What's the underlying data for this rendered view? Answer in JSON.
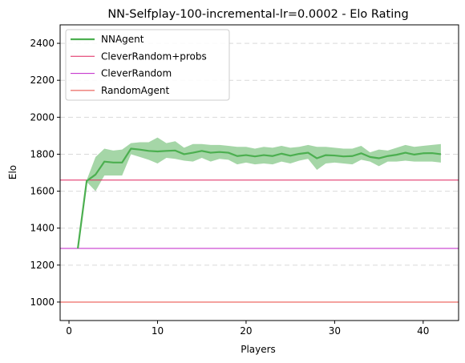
{
  "chart_data": {
    "type": "line",
    "title": "NN-Selfplay-100-incremental-lr=0.0002 - Elo Rating",
    "xlabel": "Players",
    "ylabel": "Elo",
    "xlim": [
      -1,
      44
    ],
    "ylim": [
      900,
      2500
    ],
    "xticks": [
      0,
      10,
      20,
      30,
      40
    ],
    "yticks": [
      1000,
      1200,
      1400,
      1600,
      1800,
      2000,
      2200,
      2400
    ],
    "grid": "horizontal-dashed",
    "legend_position": "upper-left",
    "series": [
      {
        "name": "NNAgent",
        "color": "#4caf50",
        "band_color": "#a5d6a7",
        "x": [
          1,
          2,
          3,
          4,
          5,
          6,
          7,
          8,
          9,
          10,
          11,
          12,
          13,
          14,
          15,
          16,
          17,
          18,
          19,
          20,
          21,
          22,
          23,
          24,
          25,
          26,
          27,
          28,
          29,
          30,
          31,
          32,
          33,
          34,
          35,
          36,
          37,
          38,
          39,
          40,
          41,
          42
        ],
        "values": [
          1290,
          1655,
          1690,
          1760,
          1755,
          1755,
          1830,
          1825,
          1818,
          1815,
          1818,
          1820,
          1800,
          1808,
          1818,
          1808,
          1812,
          1808,
          1790,
          1795,
          1788,
          1795,
          1790,
          1803,
          1792,
          1802,
          1808,
          1778,
          1795,
          1793,
          1788,
          1790,
          1805,
          1785,
          1778,
          1790,
          1797,
          1808,
          1798,
          1805,
          1806,
          1800
        ],
        "lower": [
          1290,
          1650,
          1600,
          1685,
          1685,
          1685,
          1800,
          1785,
          1770,
          1750,
          1780,
          1775,
          1765,
          1760,
          1780,
          1760,
          1775,
          1770,
          1745,
          1755,
          1745,
          1750,
          1745,
          1760,
          1750,
          1765,
          1775,
          1715,
          1750,
          1755,
          1750,
          1745,
          1770,
          1760,
          1735,
          1760,
          1760,
          1765,
          1760,
          1760,
          1760,
          1755
        ],
        "upper": [
          1290,
          1660,
          1785,
          1830,
          1820,
          1825,
          1860,
          1865,
          1865,
          1890,
          1860,
          1870,
          1835,
          1855,
          1855,
          1850,
          1850,
          1845,
          1840,
          1840,
          1830,
          1840,
          1835,
          1845,
          1835,
          1840,
          1850,
          1840,
          1840,
          1835,
          1830,
          1830,
          1845,
          1810,
          1825,
          1820,
          1835,
          1850,
          1840,
          1845,
          1850,
          1855
        ]
      },
      {
        "name": "CleverRandom+probs",
        "color": "#e0245e",
        "type": "hline",
        "value": 1660
      },
      {
        "name": "CleverRandom",
        "color": "#c020c8",
        "type": "hline",
        "value": 1290
      },
      {
        "name": "RandomAgent",
        "color": "#e8453c",
        "type": "hline",
        "value": 1000
      }
    ]
  }
}
